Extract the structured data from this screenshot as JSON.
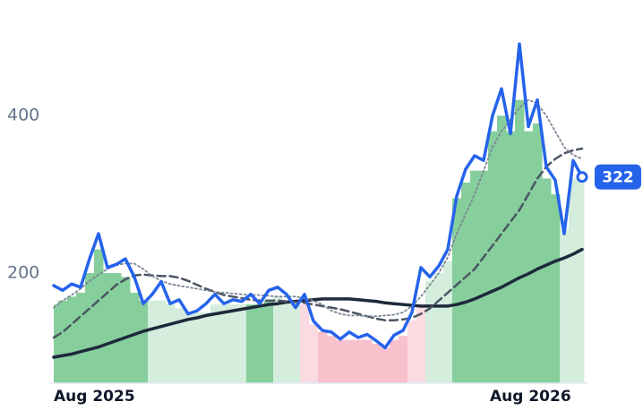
{
  "chart_data": {
    "type": "line",
    "categories": [
      "Aug 2025",
      null,
      null,
      null,
      null,
      null,
      null,
      null,
      null,
      null,
      null,
      null,
      null,
      null,
      null,
      null,
      null,
      null,
      null,
      null,
      null,
      null,
      null,
      null,
      null,
      null,
      null,
      null,
      null,
      null,
      null,
      null,
      null,
      null,
      null,
      null,
      null,
      null,
      null,
      null,
      null,
      null,
      null,
      null,
      null,
      null,
      null,
      null,
      null,
      "Aug 2026",
      null,
      null,
      null,
      null,
      null,
      null,
      null,
      null,
      null,
      null
    ],
    "ylim": [
      60,
      490
    ],
    "yticks": [
      200,
      400
    ],
    "band": {
      "values": [
        160,
        165,
        170,
        175,
        200,
        230,
        200,
        200,
        195,
        175,
        165,
        165,
        165,
        160,
        155,
        150,
        150,
        150,
        160,
        160,
        160,
        160,
        160,
        160,
        165,
        170,
        165,
        160,
        160,
        135,
        125,
        120,
        115,
        115,
        115,
        115,
        110,
        105,
        115,
        120,
        140,
        160,
        190,
        200,
        215,
        295,
        315,
        330,
        330,
        380,
        400,
        380,
        420,
        380,
        390,
        320,
        300,
        255,
        320,
        320
      ],
      "colors": [
        "#86cf9c",
        "#86cf9c",
        "#86cf9c",
        "#86cf9c",
        "#86cf9c",
        "#86cf9c",
        "#86cf9c",
        "#86cf9c",
        "#86cf9c",
        "#86cf9c",
        "#86cf9c",
        "#d4eddc",
        "#d4eddc",
        "#d4eddc",
        "#d4eddc",
        "#d4eddc",
        "#d4eddc",
        "#d4eddc",
        "#d4eddc",
        "#d4eddc",
        "#d4eddc",
        "#d4eddc",
        "#86cf9c",
        "#86cf9c",
        "#86cf9c",
        "#d4eddc",
        "#d4eddc",
        "#d4eddc",
        "#fbdbe2",
        "#fbdbe2",
        "#f8c1cc",
        "#f8c1cc",
        "#f8c1cc",
        "#f8c1cc",
        "#f8c1cc",
        "#f8c1cc",
        "#f8c1cc",
        "#f8c1cc",
        "#f8c1cc",
        "#f8c1cc",
        "#fbdbe2",
        "#fbdbe2",
        "#d4eddc",
        "#d4eddc",
        "#d4eddc",
        "#86cf9c",
        "#86cf9c",
        "#86cf9c",
        "#86cf9c",
        "#86cf9c",
        "#86cf9c",
        "#86cf9c",
        "#86cf9c",
        "#86cf9c",
        "#86cf9c",
        "#86cf9c",
        "#86cf9c",
        "#d4eddc",
        "#d4eddc",
        "#d4eddc"
      ]
    },
    "series": [
      {
        "color": "#1e293b",
        "style": "solid",
        "width": 3.5,
        "values": [
          93,
          95,
          97,
          100,
          103,
          106,
          110,
          114,
          118,
          122,
          126,
          129,
          132,
          135,
          138,
          141,
          143,
          146,
          148,
          150,
          152,
          154,
          156,
          158,
          160,
          161,
          163,
          164,
          165,
          166,
          167,
          167,
          167,
          167,
          166,
          165,
          164,
          162,
          161,
          160,
          159,
          158,
          158,
          158,
          158,
          160,
          163,
          167,
          172,
          177,
          182,
          188,
          194,
          199,
          205,
          210,
          215,
          219,
          224,
          230
        ]
      },
      {
        "color": "#4b5563",
        "style": "dashed",
        "width": 2.5,
        "values": [
          118,
          125,
          135,
          145,
          155,
          165,
          175,
          185,
          192,
          197,
          198,
          197,
          196,
          196,
          194,
          190,
          185,
          180,
          176,
          172,
          170,
          168,
          166,
          165,
          165,
          165,
          164,
          163,
          162,
          160,
          158,
          156,
          154,
          151,
          148,
          145,
          142,
          140,
          140,
          141,
          143,
          148,
          155,
          165,
          175,
          185,
          195,
          205,
          220,
          235,
          250,
          265,
          280,
          300,
          320,
          335,
          345,
          352,
          356,
          358
        ]
      },
      {
        "color": "#7b8595",
        "style": "dotted",
        "width": 1.8,
        "values": [
          156,
          165,
          172,
          180,
          190,
          198,
          205,
          210,
          212,
          212,
          205,
          196,
          190,
          186,
          184,
          182,
          180,
          178,
          176,
          175,
          174,
          173,
          172,
          172,
          171,
          170,
          170,
          170,
          168,
          165,
          160,
          152,
          148,
          146,
          146,
          145,
          145,
          146,
          147,
          150,
          158,
          170,
          185,
          200,
          220,
          250,
          275,
          300,
          330,
          360,
          380,
          395,
          410,
          420,
          415,
          400,
          380,
          360,
          350,
          345
        ]
      },
      {
        "color": "#2563eb",
        "style": "solid",
        "width": 3.5,
        "values": [
          184,
          178,
          186,
          182,
          218,
          250,
          207,
          211,
          218,
          195,
          161,
          173,
          189,
          161,
          166,
          148,
          152,
          161,
          173,
          161,
          166,
          164,
          173,
          161,
          178,
          182,
          173,
          156,
          173,
          139,
          127,
          125,
          116,
          125,
          118,
          122,
          114,
          105,
          121,
          127,
          150,
          207,
          195,
          209,
          230,
          298,
          332,
          349,
          343,
          400,
          434,
          377,
          491,
          386,
          420,
          335,
          318,
          250,
          343,
          322
        ]
      }
    ]
  }
}
